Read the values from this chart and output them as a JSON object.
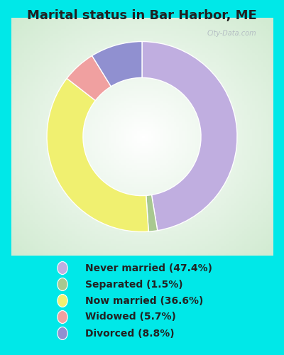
{
  "title": "Marital status in Bar Harbor, ME",
  "values": [
    47.4,
    1.5,
    36.6,
    5.7,
    8.8
  ],
  "colors": [
    "#c0aee0",
    "#a8c890",
    "#f0f070",
    "#f0a0a0",
    "#9090d0"
  ],
  "legend_labels": [
    "Never married (47.4%)",
    "Separated (1.5%)",
    "Now married (36.6%)",
    "Widowed (5.7%)",
    "Divorced (8.8%)"
  ],
  "bg_outer": "#00e8e8",
  "bg_chart_color": "#d0ead0",
  "watermark": "City-Data.com",
  "title_fontsize": 13,
  "legend_fontsize": 10,
  "start_angle": 90,
  "donut_width": 0.38
}
